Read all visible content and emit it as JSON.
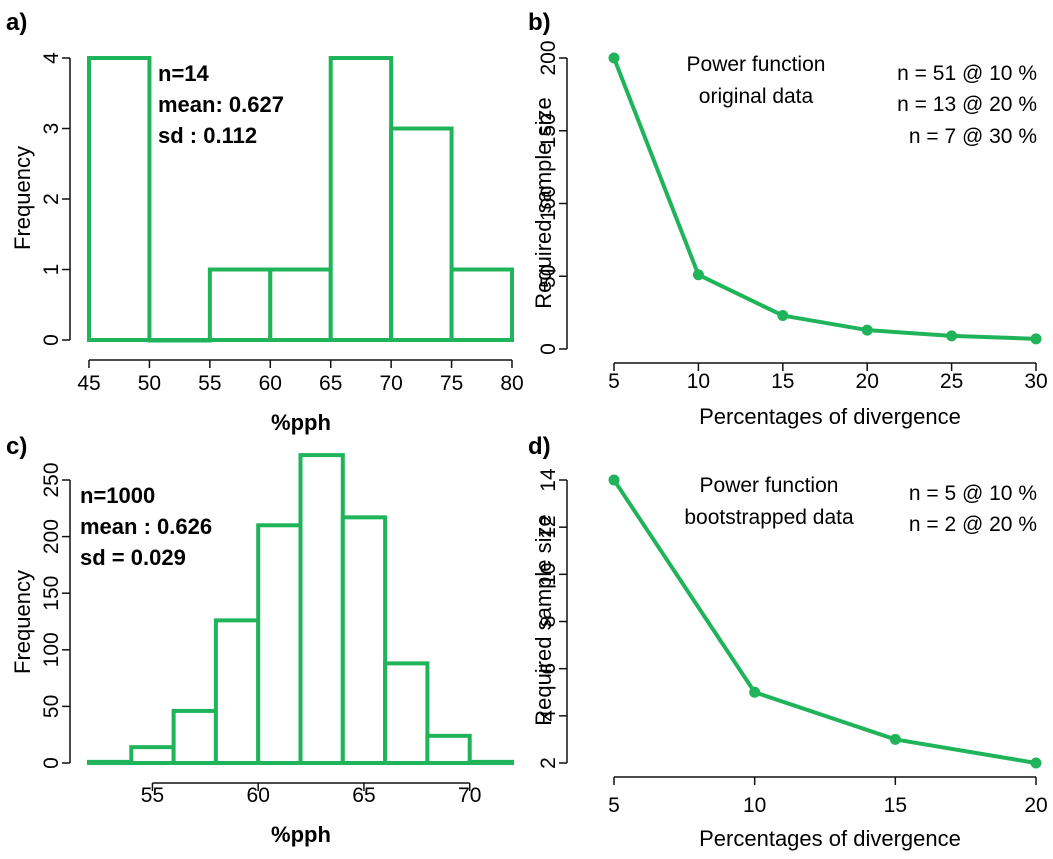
{
  "colors": {
    "series": "#20b45a",
    "axis": "#111111",
    "background": "#ffffff"
  },
  "panels": {
    "a": {
      "letter": "a)",
      "annotations": [
        "n=14",
        "mean: 0.627",
        "sd : 0.112"
      ]
    },
    "b": {
      "letter": "b)",
      "annotations_left": [
        "Power function",
        "original data"
      ],
      "annotations_right": [
        "n = 51 @ 10 %",
        "n = 13 @ 20 %",
        "n = 7 @ 30 %"
      ]
    },
    "c": {
      "letter": "c)",
      "annotations": [
        "n=1000",
        "mean : 0.626",
        "sd =  0.029"
      ]
    },
    "d": {
      "letter": "d)",
      "annotations_left": [
        "Power function",
        "bootstrapped data"
      ],
      "annotations_right": [
        "n = 5 @ 10 %",
        "n = 2 @ 20 %"
      ]
    }
  },
  "chart_data": [
    {
      "type": "bar",
      "panel": "a",
      "subtype": "histogram",
      "xlabel": "%pph",
      "ylabel": "Frequency",
      "bins": [
        [
          45,
          50
        ],
        [
          50,
          55
        ],
        [
          55,
          60
        ],
        [
          60,
          65
        ],
        [
          65,
          70
        ],
        [
          70,
          75
        ],
        [
          75,
          80
        ]
      ],
      "values": [
        4,
        0,
        1,
        1,
        4,
        3,
        1
      ],
      "xlim": [
        45,
        80
      ],
      "ylim": [
        0,
        4
      ],
      "xticks": [
        45,
        50,
        55,
        60,
        65,
        70,
        75,
        80
      ],
      "yticks": [
        0,
        1,
        2,
        3,
        4
      ],
      "grid": false
    },
    {
      "type": "line",
      "panel": "b",
      "xlabel": "Percentages of divergence",
      "ylabel": "Required sample size",
      "x": [
        5,
        10,
        15,
        20,
        25,
        30
      ],
      "y": [
        200,
        51,
        23,
        13,
        9,
        7
      ],
      "xlim": [
        5,
        30
      ],
      "ylim": [
        0,
        200
      ],
      "xticks": [
        5,
        10,
        15,
        20,
        25,
        30
      ],
      "yticks": [
        0,
        50,
        100,
        150,
        200
      ],
      "grid": false
    },
    {
      "type": "bar",
      "panel": "c",
      "subtype": "histogram",
      "xlabel": "%pph",
      "ylabel": "Frequency",
      "bins": [
        [
          52,
          54
        ],
        [
          54,
          56
        ],
        [
          56,
          58
        ],
        [
          58,
          60
        ],
        [
          60,
          62
        ],
        [
          62,
          64
        ],
        [
          64,
          66
        ],
        [
          66,
          68
        ],
        [
          68,
          70
        ],
        [
          70,
          72
        ]
      ],
      "values": [
        1,
        14,
        46,
        126,
        210,
        272,
        217,
        88,
        24,
        1
      ],
      "xlim": [
        52,
        72
      ],
      "ylim": [
        0,
        250
      ],
      "xticks": [
        55,
        60,
        65,
        70
      ],
      "yticks": [
        0,
        50,
        100,
        150,
        200,
        250
      ],
      "grid": false
    },
    {
      "type": "line",
      "panel": "d",
      "xlabel": "Percentages of divergence",
      "ylabel": "Required sample size",
      "x": [
        5,
        10,
        15,
        20
      ],
      "y": [
        14,
        5,
        3,
        2
      ],
      "xlim": [
        5,
        20
      ],
      "ylim": [
        2,
        14
      ],
      "xticks": [
        5,
        10,
        15,
        20
      ],
      "yticks": [
        2,
        4,
        6,
        8,
        10,
        12,
        14
      ],
      "grid": false
    }
  ]
}
